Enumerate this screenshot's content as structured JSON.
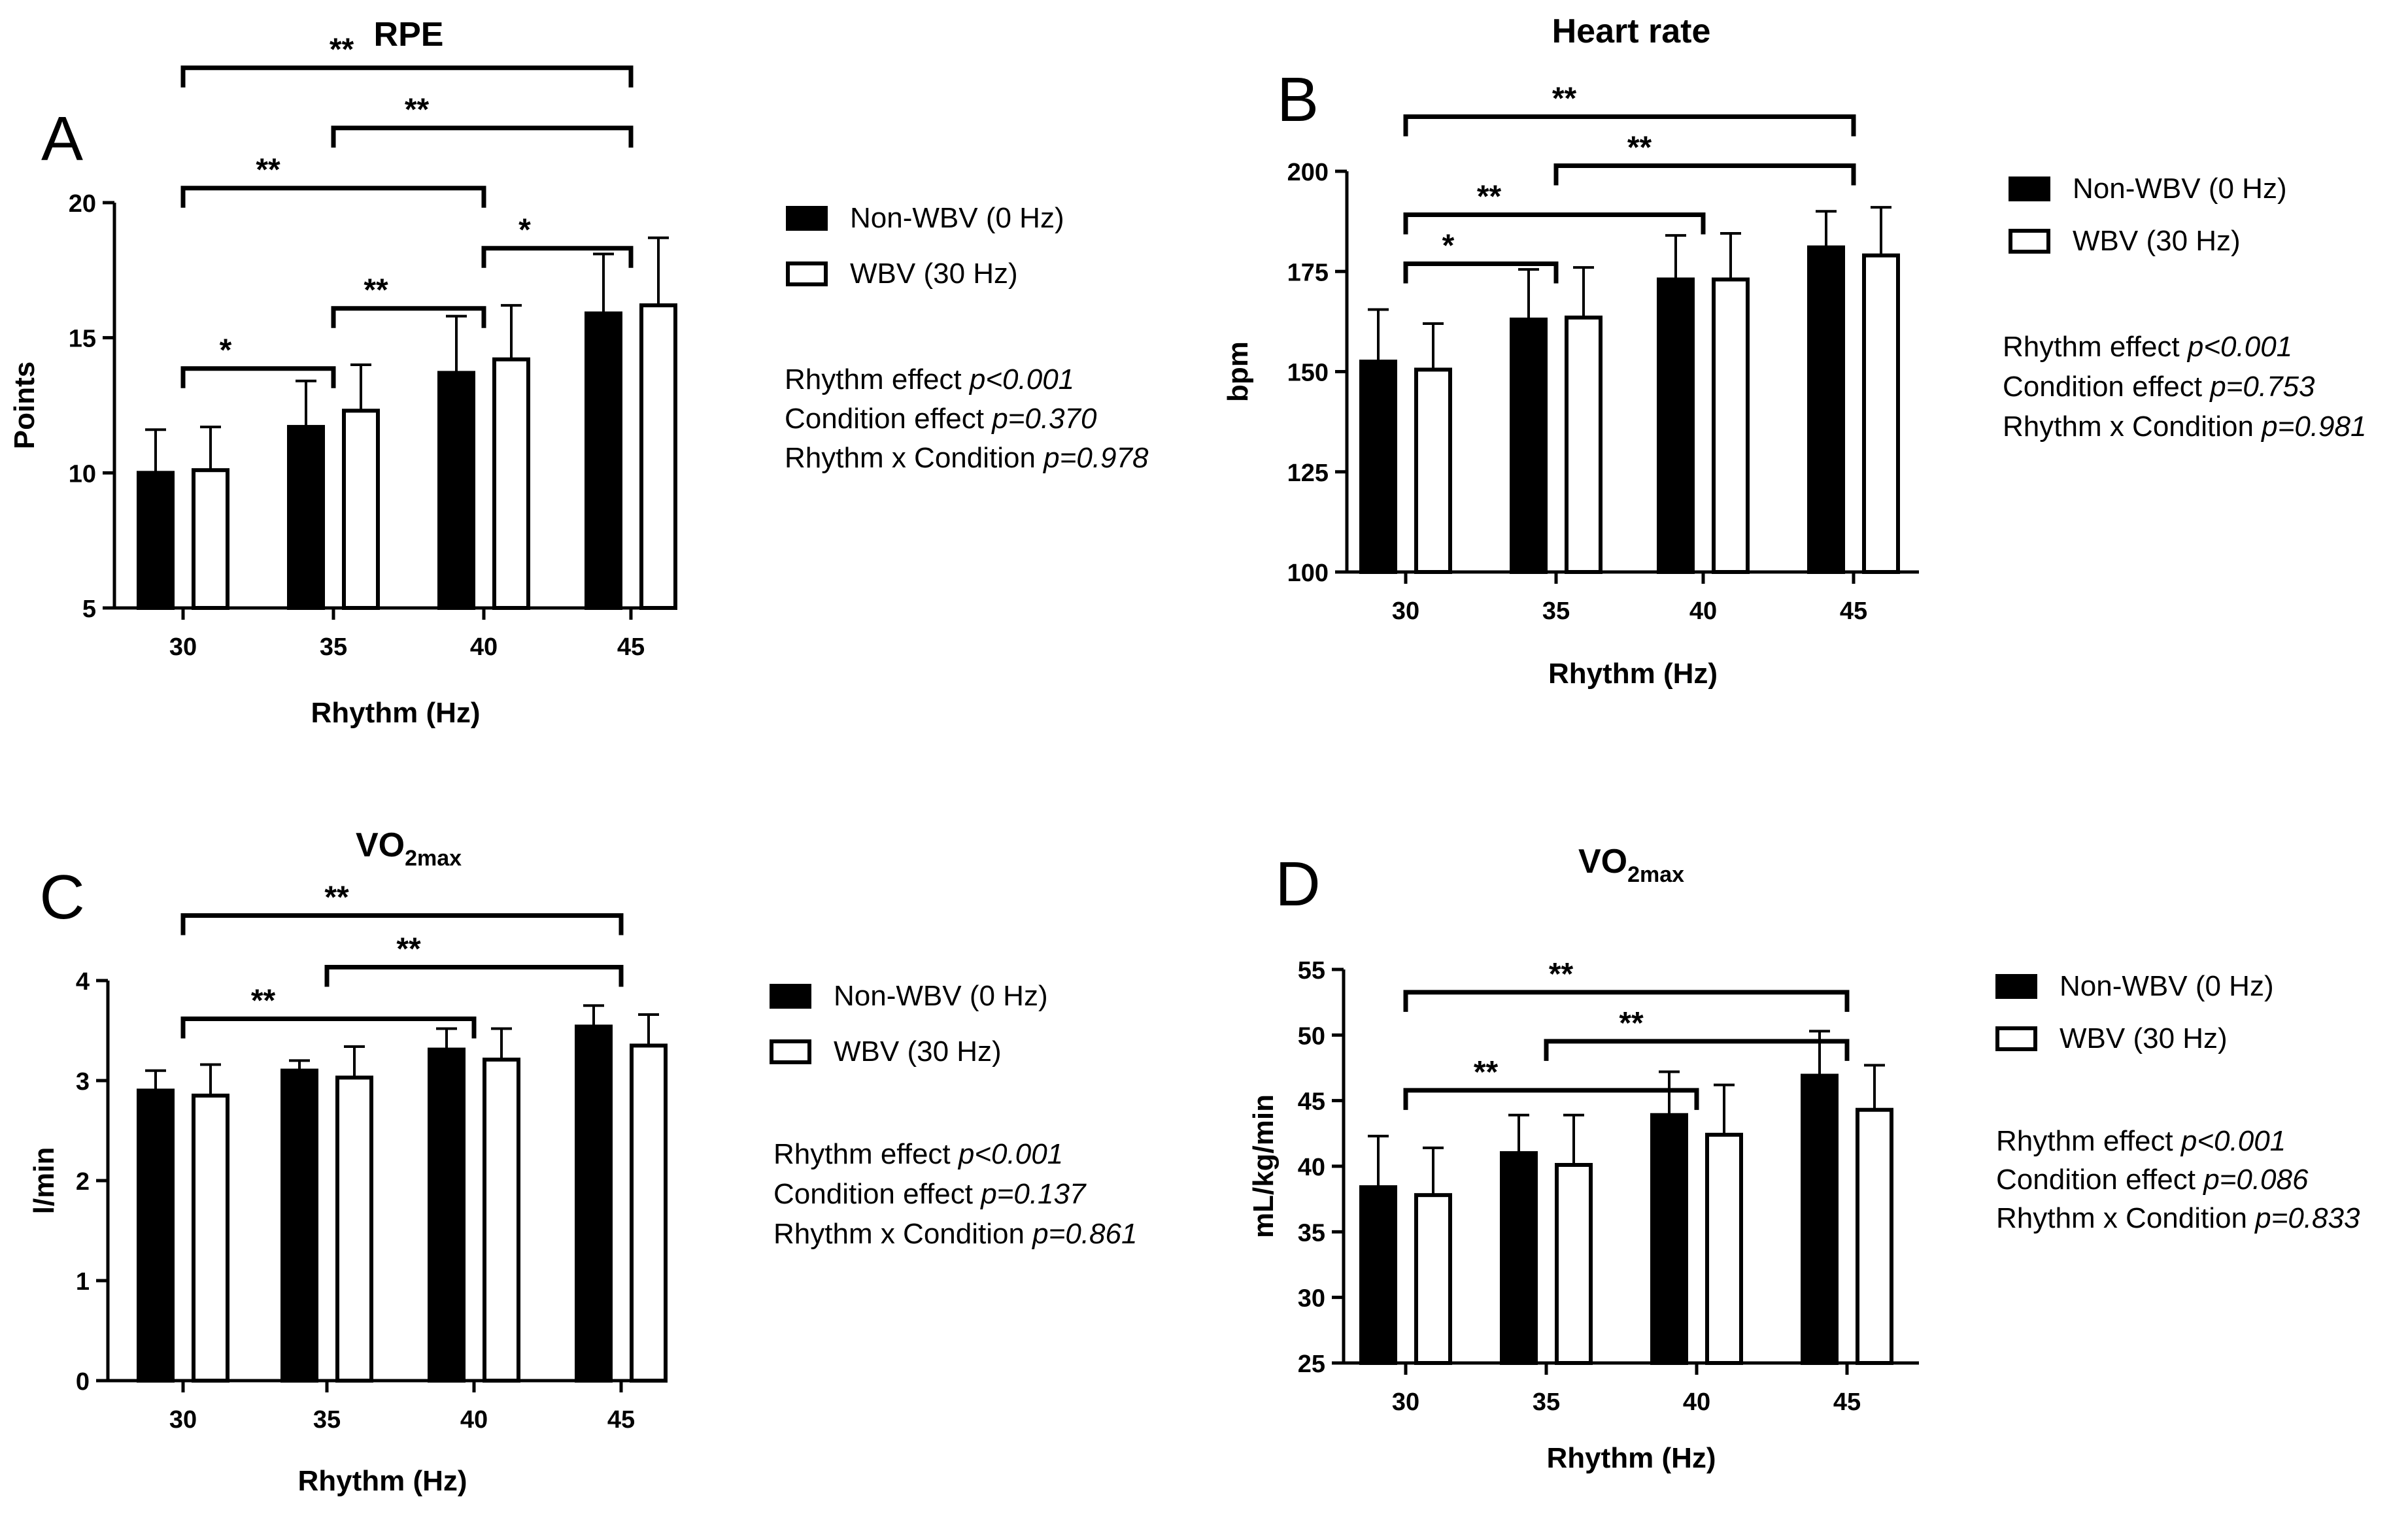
{
  "chart_data": [
    {
      "panel": "A",
      "type": "bar",
      "title": "RPE",
      "title_sub": "",
      "xlabel": "Rhythm (Hz)",
      "ylabel": "Points",
      "categories": [
        "30",
        "35",
        "40",
        "45"
      ],
      "ylim": [
        5,
        20
      ],
      "yticks": [
        5,
        10,
        15,
        20
      ],
      "series": [
        {
          "name": "Non-WBV (0 Hz)",
          "fill": "#000000",
          "values": [
            10.0,
            11.7,
            13.7,
            15.9
          ],
          "errors": [
            1.6,
            1.7,
            2.1,
            2.2
          ]
        },
        {
          "name": "WBV (30 Hz)",
          "fill": "#ffffff",
          "values": [
            10.1,
            12.3,
            14.2,
            16.2
          ],
          "errors": [
            1.6,
            1.7,
            2.0,
            2.5
          ]
        }
      ],
      "significance": [
        {
          "from": "30",
          "to": "35",
          "label": "*"
        },
        {
          "from": "30",
          "to": "40",
          "label": "**"
        },
        {
          "from": "30",
          "to": "45",
          "label": "**"
        },
        {
          "from": "35",
          "to": "40",
          "label": "**"
        },
        {
          "from": "35",
          "to": "45",
          "label": "**"
        },
        {
          "from": "40",
          "to": "45",
          "label": "*"
        }
      ],
      "stats": [
        {
          "label": "Rhythm effect",
          "p": "p<0.001"
        },
        {
          "label": "Condition effect",
          "p": "p=0.370"
        },
        {
          "label": "Rhythm x Condition",
          "p": "p=0.978"
        }
      ]
    },
    {
      "panel": "B",
      "type": "bar",
      "title": "Heart rate",
      "title_sub": "",
      "xlabel": "Rhythm (Hz)",
      "ylabel": "bpm",
      "categories": [
        "30",
        "35",
        "40",
        "45"
      ],
      "ylim": [
        100,
        200
      ],
      "yticks": [
        100,
        125,
        150,
        175,
        200
      ],
      "series": [
        {
          "name": "Non-WBV (0 Hz)",
          "fill": "#000000",
          "values": [
            152.5,
            163.0,
            173.0,
            181.0
          ],
          "errors": [
            13.0,
            12.5,
            11.0,
            9.0
          ]
        },
        {
          "name": "WBV (30 Hz)",
          "fill": "#ffffff",
          "values": [
            150.5,
            163.5,
            173.0,
            179.0
          ],
          "errors": [
            11.5,
            12.5,
            11.5,
            12.0
          ]
        }
      ],
      "significance": [
        {
          "from": "30",
          "to": "35",
          "label": "*"
        },
        {
          "from": "30",
          "to": "40",
          "label": "**"
        },
        {
          "from": "30",
          "to": "45",
          "label": "**"
        },
        {
          "from": "35",
          "to": "45",
          "label": "**"
        }
      ],
      "stats": [
        {
          "label": "Rhythm effect",
          "p": "p<0.001"
        },
        {
          "label": "Condition effect",
          "p": "p=0.753"
        },
        {
          "label": "Rhythm x Condition",
          "p": "p=0.981"
        }
      ]
    },
    {
      "panel": "C",
      "type": "bar",
      "title": "VO",
      "title_sub": "2max",
      "xlabel": "Rhythm (Hz)",
      "ylabel": "l/min",
      "categories": [
        "30",
        "35",
        "40",
        "45"
      ],
      "ylim": [
        0,
        4
      ],
      "yticks": [
        0,
        1,
        2,
        3,
        4
      ],
      "series": [
        {
          "name": "Non-WBV (0 Hz)",
          "fill": "#000000",
          "values": [
            2.9,
            3.1,
            3.31,
            3.54
          ],
          "errors": [
            0.2,
            0.1,
            0.21,
            0.21
          ]
        },
        {
          "name": "WBV (30 Hz)",
          "fill": "#ffffff",
          "values": [
            2.85,
            3.03,
            3.21,
            3.35
          ],
          "errors": [
            0.31,
            0.31,
            0.31,
            0.31
          ]
        }
      ],
      "significance": [
        {
          "from": "30",
          "to": "40",
          "label": "**"
        },
        {
          "from": "30",
          "to": "45",
          "label": "**"
        },
        {
          "from": "35",
          "to": "45",
          "label": "**"
        }
      ],
      "stats": [
        {
          "label": "Rhythm effect",
          "p": "p<0.001"
        },
        {
          "label": "Condition effect",
          "p": "p=0.137"
        },
        {
          "label": "Rhythm x Condition",
          "p": "p=0.861"
        }
      ]
    },
    {
      "panel": "D",
      "type": "bar",
      "title": "VO",
      "title_sub": "2max",
      "xlabel": "Rhythm (Hz)",
      "ylabel": "mL/kg/min",
      "categories": [
        "30",
        "35",
        "40",
        "45"
      ],
      "ylim": [
        25,
        55
      ],
      "yticks": [
        25,
        30,
        35,
        40,
        45,
        50,
        55
      ],
      "series": [
        {
          "name": "Non-WBV (0 Hz)",
          "fill": "#000000",
          "values": [
            38.4,
            41.0,
            43.9,
            46.9
          ],
          "errors": [
            3.9,
            2.9,
            3.3,
            3.4
          ]
        },
        {
          "name": "WBV (30 Hz)",
          "fill": "#ffffff",
          "values": [
            37.8,
            40.1,
            42.4,
            44.3
          ],
          "errors": [
            3.6,
            3.8,
            3.8,
            3.4
          ]
        }
      ],
      "significance": [
        {
          "from": "30",
          "to": "40",
          "label": "**"
        },
        {
          "from": "30",
          "to": "45",
          "label": "**"
        },
        {
          "from": "35",
          "to": "45",
          "label": "**"
        }
      ],
      "stats": [
        {
          "label": "Rhythm effect",
          "p": "p<0.001"
        },
        {
          "label": "Condition effect",
          "p": "p=0.086"
        },
        {
          "label": "Rhythm x Condition",
          "p": "p=0.833"
        }
      ]
    }
  ]
}
